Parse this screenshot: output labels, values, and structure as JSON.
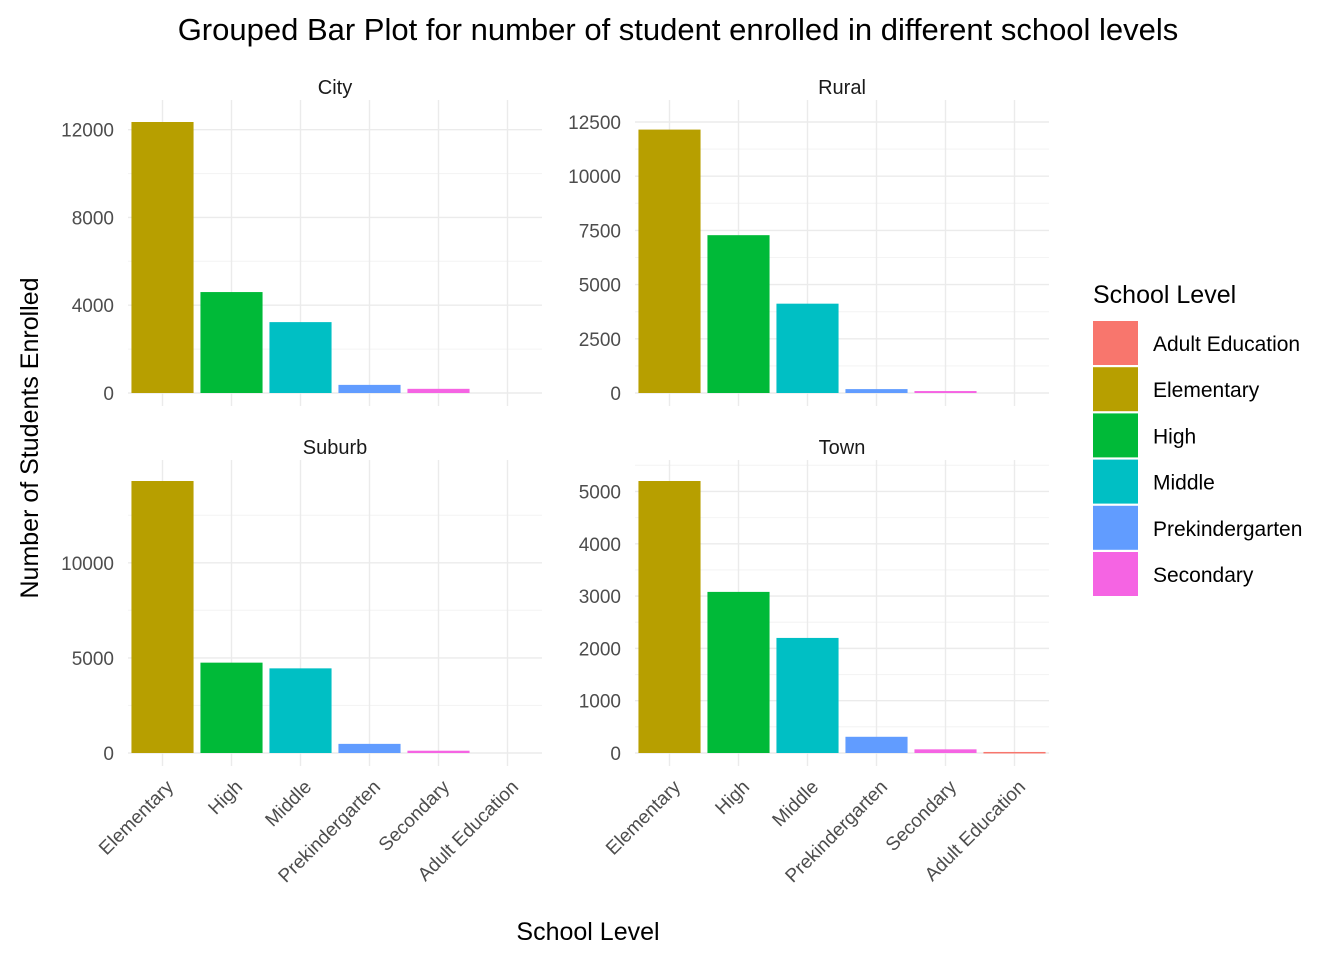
{
  "chart_data": {
    "type": "bar",
    "title": "Grouped Bar Plot for number of student enrolled in different school levels",
    "xlabel": "School Level",
    "ylabel": "Number of Students Enrolled",
    "categories": [
      "Elementary",
      "High",
      "Middle",
      "Prekindergarten",
      "Secondary",
      "Adult Education"
    ],
    "colors": {
      "Adult Education": "#F8766D",
      "Elementary": "#B79F00",
      "High": "#00BA38",
      "Middle": "#00BFC4",
      "Prekindergarten": "#619CFF",
      "Secondary": "#F564E3"
    },
    "legend": {
      "title": "School Level",
      "position": "right",
      "items": [
        "Adult Education",
        "Elementary",
        "High",
        "Middle",
        "Prekindergarten",
        "Secondary"
      ]
    },
    "grid": true,
    "panels": [
      {
        "name": "City",
        "values": [
          12350,
          4600,
          3230,
          370,
          190,
          0
        ],
        "ylim": [
          0,
          12350
        ],
        "yticks": [
          0,
          4000,
          8000,
          12000
        ],
        "ytick_labels": [
          "0",
          "4000",
          "8000",
          "12000"
        ]
      },
      {
        "name": "Rural",
        "values": [
          12150,
          7280,
          4120,
          180,
          90,
          0
        ],
        "ylim": [
          0,
          12500
        ],
        "yticks": [
          0,
          2500,
          5000,
          7500,
          10000,
          12500
        ],
        "ytick_labels": [
          "0",
          "2500",
          "5000",
          "7500",
          "10000",
          "12500"
        ]
      },
      {
        "name": "Suburb",
        "values": [
          14300,
          4750,
          4450,
          480,
          120,
          0
        ],
        "ylim": [
          0,
          14300
        ],
        "yticks": [
          0,
          5000,
          10000
        ],
        "ytick_labels": [
          "0",
          "5000",
          "10000"
        ]
      },
      {
        "name": "Town",
        "values": [
          5200,
          3080,
          2200,
          310,
          70,
          20
        ],
        "ylim": [
          0,
          5200
        ],
        "yticks": [
          0,
          1000,
          2000,
          3000,
          4000,
          5000
        ],
        "ytick_labels": [
          "0",
          "1000",
          "2000",
          "3000",
          "4000",
          "5000"
        ]
      }
    ]
  }
}
